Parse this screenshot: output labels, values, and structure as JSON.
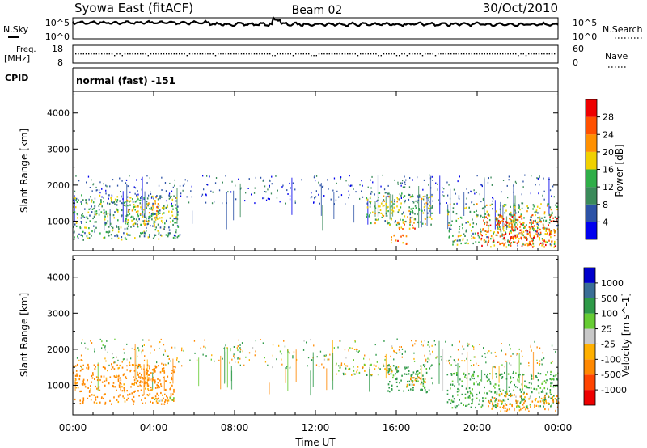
{
  "header": {
    "title": "Syowa East (fitACF)",
    "beam": "Beam 02",
    "date": "30/Oct/2010"
  },
  "noise_panel": {
    "left_label": "N.Sky",
    "right_label": "N.Search",
    "left_ticks": [
      "10^5",
      "10^0"
    ],
    "right_ticks": [
      "10^5",
      "10^0"
    ]
  },
  "freq_panel": {
    "left_label_line1": "Freq.",
    "left_label_line2": "[MHz]",
    "right_label": "Nave",
    "left_ticks": [
      "18",
      "8"
    ],
    "right_ticks": [
      "60",
      "0"
    ]
  },
  "cpid_panel": {
    "label": "CPID",
    "text": "normal (fast) -151"
  },
  "x_axis": {
    "label": "Time UT",
    "range": [
      0,
      24
    ],
    "ticks": [
      0,
      4,
      8,
      12,
      16,
      20,
      24
    ],
    "tick_labels": [
      "00:00",
      "04:00",
      "08:00",
      "12:00",
      "16:00",
      "20:00",
      "00:00"
    ]
  },
  "colors": {
    "power": [
      "#0000ee",
      "#2c52a6",
      "#3a8a5a",
      "#2fae48",
      "#f0d000",
      "#ff9000",
      "#ff5000",
      "#ee0000"
    ],
    "velocity": [
      "#ee0000",
      "#ff4400",
      "#ff8800",
      "#ffb000",
      "#c8c8c8",
      "#66cc33",
      "#2e9a48",
      "#3a6e96",
      "#0000cc"
    ]
  },
  "chart_data": [
    {
      "type": "heatmap",
      "name": "power",
      "ylabel": "Slant Range [km]",
      "ylim": [
        180,
        4600
      ],
      "yticks": [
        1000,
        2000,
        3000,
        4000
      ],
      "colorbar": {
        "label": "Power [dB]",
        "range": [
          0,
          32
        ],
        "ticks": [
          "4",
          "8",
          "12",
          "16",
          "20",
          "24",
          "28"
        ]
      },
      "regions": [
        {
          "t": [
            0.0,
            5.2
          ],
          "r": [
            500,
            1750
          ],
          "v": 12
        },
        {
          "t": [
            2.5,
            4.2
          ],
          "r": [
            900,
            1700
          ],
          "v": 18
        },
        {
          "t": [
            4.3,
            5.3
          ],
          "r": [
            550,
            700
          ],
          "v": 9
        },
        {
          "t": [
            14.5,
            17.8
          ],
          "r": [
            900,
            1800
          ],
          "v": 14
        },
        {
          "t": [
            15.5,
            16.5
          ],
          "r": [
            380,
            650
          ],
          "v": 24
        },
        {
          "t": [
            16.0,
            17.0
          ],
          "r": [
            750,
            1100
          ],
          "v": 22
        },
        {
          "t": [
            18.5,
            24.0
          ],
          "r": [
            350,
            1500
          ],
          "v": 14
        },
        {
          "t": [
            20.0,
            24.0
          ],
          "r": [
            300,
            1200
          ],
          "v": 25
        }
      ]
    },
    {
      "type": "heatmap",
      "name": "velocity",
      "ylabel": "Slant Range [km]",
      "ylim": [
        180,
        4600
      ],
      "yticks": [
        1000,
        2000,
        3000,
        4000
      ],
      "colorbar": {
        "label": "Velocity [m s^-1]",
        "ticks": [
          "1000",
          "500",
          "100",
          "25",
          "-25",
          "-100",
          "-500",
          "-1000"
        ]
      },
      "regions": [
        {
          "t": [
            0.0,
            5.0
          ],
          "r": [
            500,
            1600
          ],
          "v": -200
        },
        {
          "t": [
            3.0,
            4.2
          ],
          "r": [
            1000,
            1600
          ],
          "v": -300
        },
        {
          "t": [
            4.0,
            5.3
          ],
          "r": [
            550,
            700
          ],
          "v": 0
        },
        {
          "t": [
            13.0,
            16.0
          ],
          "r": [
            1300,
            1600
          ],
          "v": 0
        },
        {
          "t": [
            15.5,
            17.8
          ],
          "r": [
            800,
            1600
          ],
          "v": 200
        },
        {
          "t": [
            16.5,
            17.5
          ],
          "r": [
            950,
            1300
          ],
          "v": -150
        },
        {
          "t": [
            18.5,
            24.0
          ],
          "r": [
            400,
            1400
          ],
          "v": 150
        },
        {
          "t": [
            20.5,
            24.0
          ],
          "r": [
            300,
            800
          ],
          "v": -150
        }
      ]
    }
  ]
}
